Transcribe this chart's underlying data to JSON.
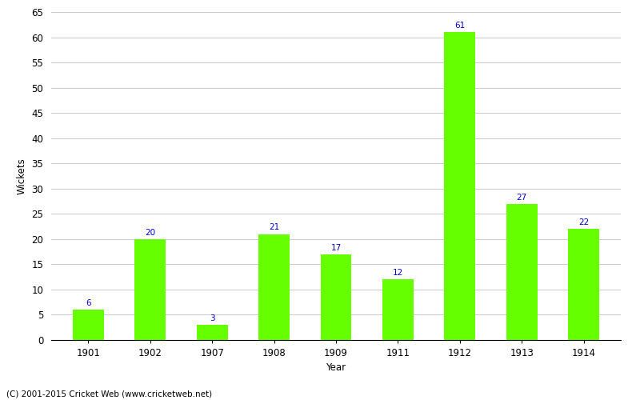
{
  "categories": [
    "1901",
    "1902",
    "1907",
    "1908",
    "1909",
    "1911",
    "1912",
    "1913",
    "1914"
  ],
  "values": [
    6,
    20,
    3,
    21,
    17,
    12,
    61,
    27,
    22
  ],
  "bar_color": "#66ff00",
  "bar_edge_color": "#66ff00",
  "label_color": "#0000cc",
  "xlabel": "Year",
  "ylabel": "Wickets",
  "ylim": [
    0,
    65
  ],
  "yticks": [
    0,
    5,
    10,
    15,
    20,
    25,
    30,
    35,
    40,
    45,
    50,
    55,
    60,
    65
  ],
  "background_color": "#ffffff",
  "grid_color": "#cccccc",
  "footnote": "(C) 2001-2015 Cricket Web (www.cricketweb.net)",
  "label_fontsize": 7.5,
  "axis_fontsize": 8.5,
  "xlabel_fontsize": 8.5,
  "ylabel_fontsize": 8.5,
  "footnote_fontsize": 7.5,
  "bar_width": 0.5
}
